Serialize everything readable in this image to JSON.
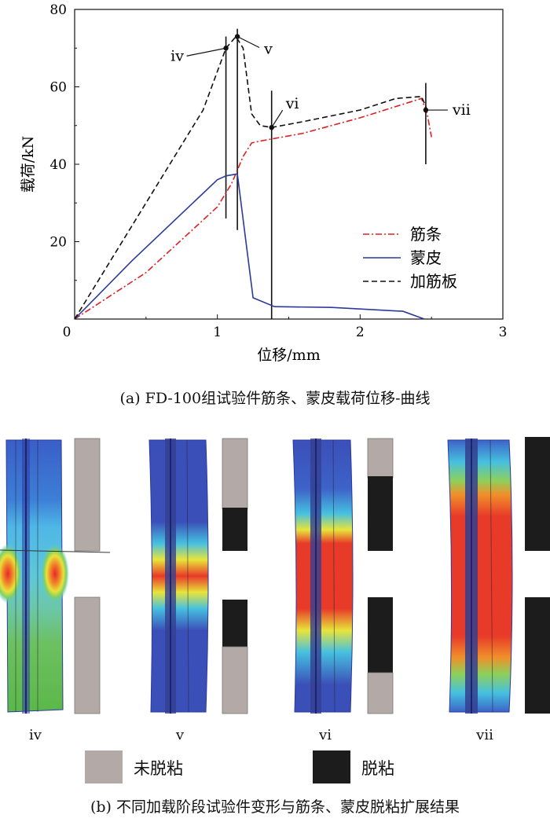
{
  "chart_data": {
    "type": "line",
    "xlabel": "位移/mm",
    "ylabel": "载荷/kN",
    "xlim": [
      0,
      3
    ],
    "ylim": [
      0,
      80
    ],
    "x_ticks": [
      "0",
      "1",
      "2",
      "3"
    ],
    "y_ticks": [
      "20",
      "40",
      "60",
      "80"
    ],
    "legend_position": "bottom-right",
    "series": [
      {
        "name": "筋条",
        "color": "#e02020",
        "dash": "dashdot",
        "x": [
          0,
          0.5,
          1.0,
          1.1,
          1.18,
          1.24,
          1.3,
          1.6,
          2.0,
          2.3,
          2.43,
          2.47,
          2.5
        ],
        "y": [
          0,
          12,
          29,
          35,
          42,
          45.5,
          46,
          48,
          52,
          55.5,
          57,
          53,
          47
        ]
      },
      {
        "name": "蒙皮",
        "color": "#2b3a9c",
        "dash": "solid",
        "x": [
          0,
          0.4,
          0.8,
          1.0,
          1.06,
          1.14,
          1.2,
          1.25,
          1.4,
          1.8,
          2.3,
          2.45
        ],
        "y": [
          0,
          15,
          29,
          36,
          37,
          37.5,
          20,
          5.5,
          3.2,
          3,
          2,
          0
        ]
      },
      {
        "name": "加筋板",
        "color": "#111111",
        "dash": "dashed",
        "x": [
          0,
          0.5,
          0.9,
          1.06,
          1.13,
          1.18,
          1.24,
          1.3,
          1.38,
          1.6,
          2.0,
          2.25,
          2.43,
          2.47
        ],
        "y": [
          0,
          30,
          54,
          70,
          73,
          70,
          53,
          50,
          49.5,
          51,
          54,
          57,
          57.5,
          54
        ]
      }
    ],
    "markers": [
      {
        "label": "iv",
        "x": 1.06,
        "y": 70
      },
      {
        "label": "v",
        "x": 1.14,
        "y": 73
      },
      {
        "label": "vi",
        "x": 1.38,
        "y": 49.5
      },
      {
        "label": "vii",
        "x": 2.46,
        "y": 54
      }
    ]
  },
  "caption_a": "(a) FD-100组试验件筋条、蒙皮载荷位移-曲线",
  "panels": [
    {
      "label": "iv"
    },
    {
      "label": "v"
    },
    {
      "label": "vi"
    },
    {
      "label": "vii"
    }
  ],
  "key": [
    {
      "label": "未脱粘",
      "color": "#b3aaa8"
    },
    {
      "label": "脱粘",
      "color": "#1c1c1c"
    }
  ],
  "caption_b": "(b) 不同加载阶段试验件变形与筋条、蒙皮脱粘扩展结果"
}
